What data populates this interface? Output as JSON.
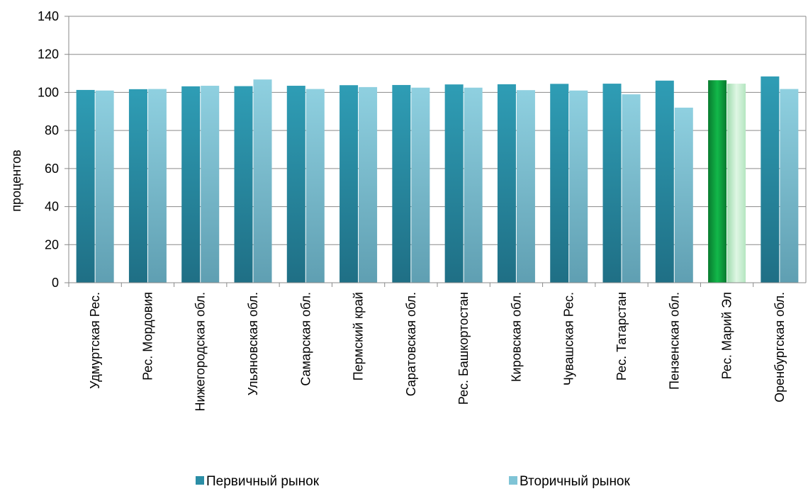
{
  "chart_data": {
    "type": "bar",
    "title": "",
    "xlabel": "",
    "ylabel": "процентов",
    "ylim": [
      0,
      140
    ],
    "yticks": [
      0,
      20,
      40,
      60,
      80,
      100,
      120,
      140
    ],
    "grid": true,
    "legend_position": "bottom",
    "categories": [
      "Удмуртская Рес.",
      "Рес. Мордовия",
      "Нижегородская обл.",
      "Ульяновская обл.",
      "Самарская обл.",
      "Пермский край",
      "Саратовская обл.",
      "Рес. Башкортостан",
      "Кировская обл.",
      "Чувашская Рес.",
      "Рес. Татарстан",
      "Пензенская обл.",
      "Рес. Марий Эл",
      "Оренбургская обл."
    ],
    "series": [
      {
        "name": "Первичный рынок",
        "color": "#2b8ea6",
        "values": [
          101.3,
          101.7,
          103.2,
          103.3,
          103.5,
          103.8,
          103.9,
          104.2,
          104.3,
          104.5,
          104.6,
          106.2,
          106.4,
          108.4
        ]
      },
      {
        "name": "Вторичный рынок",
        "color": "#7fc4d6",
        "values": [
          101.0,
          101.8,
          103.5,
          106.8,
          101.8,
          102.8,
          102.5,
          102.5,
          101.2,
          101.0,
          99.0,
          92.0,
          104.6,
          101.8
        ]
      }
    ],
    "highlight": {
      "category": "Рес. Марий Эл",
      "colors": [
        "#0e9a3f",
        "#b9e8c2"
      ]
    }
  }
}
